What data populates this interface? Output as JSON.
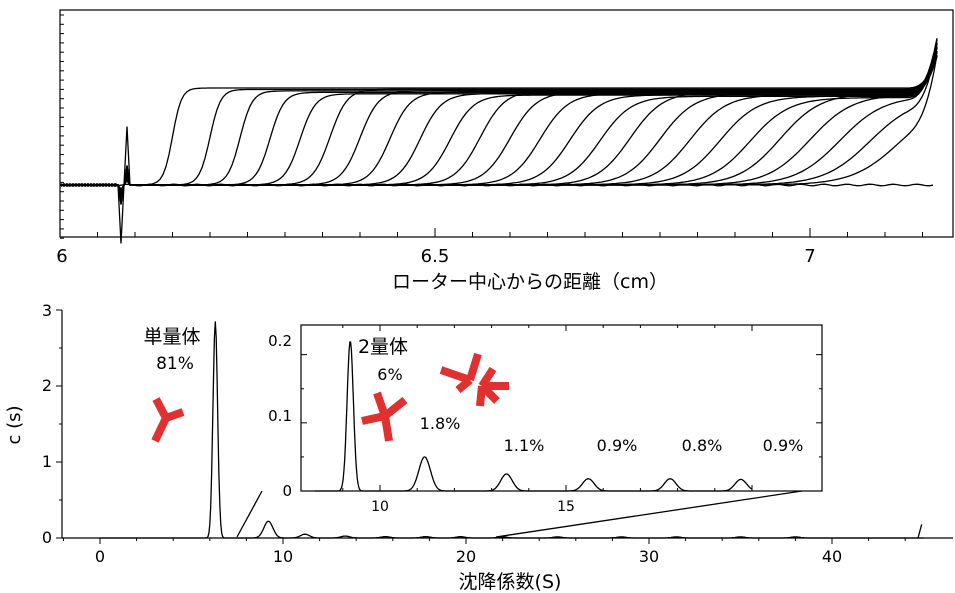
{
  "top_chart": {
    "xlabel": "ローター中心からの距離（cm）",
    "xticks": [
      "6",
      "6.5",
      "7"
    ]
  },
  "bottom_chart": {
    "ylabel": "c (s)",
    "xlabel": "沈降係数(S)",
    "xticks": [
      "0",
      "10",
      "20",
      "30",
      "40"
    ],
    "yticks": [
      "0",
      "1",
      "2",
      "3"
    ],
    "monomer_label": "単量体",
    "monomer_pct": "81%",
    "colors": {
      "antibody": "#e03030"
    }
  },
  "inset": {
    "xticks": [
      "10",
      "15"
    ],
    "yticks": [
      "0",
      "0.1",
      "0.2"
    ],
    "dimer_label": "2量体",
    "dimer_pct": "6%",
    "peak_labels": [
      "1.8%",
      "1.1%",
      "0.9%",
      "0.8%",
      "0.9%"
    ]
  },
  "chart_data": [
    {
      "type": "line",
      "title": "",
      "xlabel": "ローター中心からの距離（cm）",
      "ylabel": "",
      "xlim": [
        6,
        7.2
      ],
      "series_description": "sedimentation velocity boundary scans",
      "boundary_midpoints_cm": [
        6.15,
        6.2,
        6.24,
        6.28,
        6.32,
        6.36,
        6.4,
        6.44,
        6.48,
        6.52,
        6.56,
        6.6,
        6.64,
        6.68,
        6.72,
        6.76,
        6.8,
        6.84,
        6.88,
        6.92,
        6.96,
        7.0,
        7.04,
        7.08,
        7.12
      ]
    },
    {
      "type": "line",
      "title": "",
      "xlabel": "沈降係数(S)",
      "ylabel": "c (s)",
      "xlim": [
        -2,
        47
      ],
      "ylim": [
        0,
        3
      ],
      "series": [
        {
          "peaks": [
            {
              "x": 6.3,
              "y": 2.85,
              "label": "単量体 81%"
            },
            {
              "x": 9.2,
              "y": 0.22,
              "label": "2量体 6%"
            },
            {
              "x": 11.2,
              "y": 0.05,
              "label": "1.8%"
            },
            {
              "x": 13.4,
              "y": 0.025,
              "label": "1.1%"
            },
            {
              "x": 15.6,
              "y": 0.018,
              "label": "0.9%"
            },
            {
              "x": 17.8,
              "y": 0.018,
              "label": "0.8%"
            },
            {
              "x": 19.7,
              "y": 0.017,
              "label": "0.9%"
            }
          ]
        }
      ]
    },
    {
      "type": "line",
      "title": "",
      "xlabel": "",
      "ylabel": "",
      "xlim": [
        8,
        20
      ],
      "ylim": [
        0,
        0.22
      ],
      "series": [
        {
          "peaks": [
            {
              "x": 9.2,
              "y": 0.22
            },
            {
              "x": 11.2,
              "y": 0.05
            },
            {
              "x": 13.4,
              "y": 0.025
            },
            {
              "x": 15.6,
              "y": 0.018
            },
            {
              "x": 17.8,
              "y": 0.018
            },
            {
              "x": 19.7,
              "y": 0.017
            }
          ]
        }
      ]
    }
  ]
}
